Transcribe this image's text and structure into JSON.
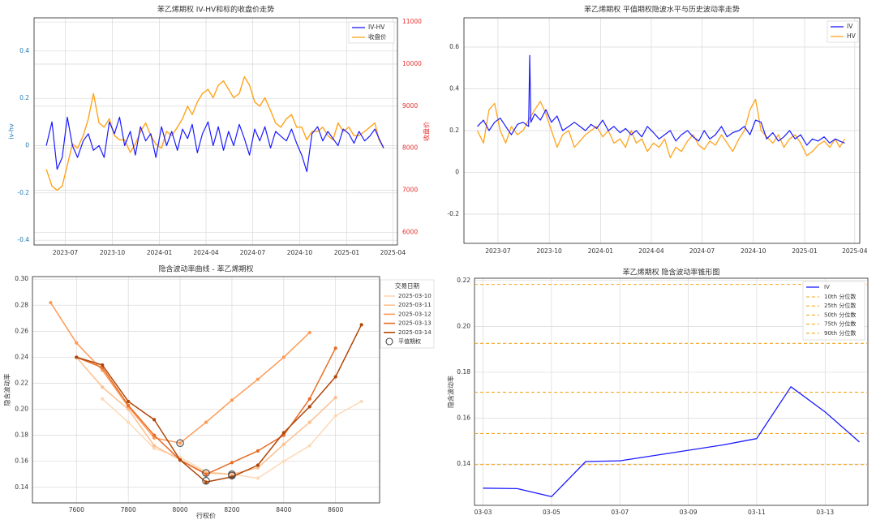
{
  "chart_data": [
    {
      "type": "line",
      "title": "苯乙烯期权 IV-HV和标的收盘价走势",
      "xlabel": "",
      "ylabel": "iv-hv",
      "y2label": "收盘价",
      "xlim": [
        "2023-05-01",
        "2025-04-10"
      ],
      "ylim": [
        -0.42,
        0.54
      ],
      "y2lim": [
        5700,
        11100
      ],
      "x_ticks": [
        "2023-07",
        "2023-10",
        "2024-01",
        "2024-04",
        "2024-07",
        "2024-10",
        "2025-01",
        "2025-04"
      ],
      "y_ticks": [
        -0.4,
        -0.2,
        0.0,
        0.2,
        0.4
      ],
      "y2_ticks": [
        6000,
        7000,
        8000,
        9000,
        10000,
        11000
      ],
      "grid": true,
      "legend": "top-right",
      "colors": {
        "iv_hv": "#1a1aff",
        "close": "#ffa31a",
        "left_axis": "#1f77b4",
        "right_axis": "#e8302f"
      },
      "series": [
        {
          "name": "IV-HV",
          "axis": "left",
          "x": [
            "2023-05-25",
            "2023-06-05",
            "2023-06-15",
            "2023-06-25",
            "2023-07-05",
            "2023-07-15",
            "2023-07-25",
            "2023-08-05",
            "2023-08-15",
            "2023-08-25",
            "2023-09-05",
            "2023-09-15",
            "2023-09-25",
            "2023-10-05",
            "2023-10-15",
            "2023-10-25",
            "2023-11-05",
            "2023-11-15",
            "2023-11-25",
            "2023-12-05",
            "2023-12-15",
            "2023-12-25",
            "2024-01-05",
            "2024-01-15",
            "2024-01-25",
            "2024-02-05",
            "2024-02-15",
            "2024-02-25",
            "2024-03-05",
            "2024-03-15",
            "2024-03-25",
            "2024-04-05",
            "2024-04-15",
            "2024-04-25",
            "2024-05-05",
            "2024-05-15",
            "2024-05-25",
            "2024-06-05",
            "2024-06-15",
            "2024-06-25",
            "2024-07-05",
            "2024-07-15",
            "2024-07-25",
            "2024-08-05",
            "2024-08-15",
            "2024-08-25",
            "2024-09-05",
            "2024-09-15",
            "2024-09-25",
            "2024-10-05",
            "2024-10-15",
            "2024-10-25",
            "2024-11-05",
            "2024-11-15",
            "2024-11-25",
            "2024-12-05",
            "2024-12-15",
            "2024-12-25",
            "2025-01-05",
            "2025-01-15",
            "2025-01-25",
            "2025-02-05",
            "2025-02-15",
            "2025-02-25",
            "2025-03-05",
            "2025-03-14"
          ],
          "values": [
            0.0,
            0.1,
            -0.1,
            -0.05,
            0.12,
            0.0,
            -0.05,
            0.02,
            0.05,
            -0.02,
            0.0,
            -0.05,
            0.1,
            0.05,
            0.12,
            0.0,
            0.06,
            -0.04,
            0.08,
            0.02,
            0.05,
            -0.05,
            0.08,
            0.0,
            0.06,
            -0.02,
            0.07,
            0.03,
            0.09,
            -0.03,
            0.05,
            0.1,
            0.0,
            0.08,
            -0.02,
            0.06,
            0.0,
            0.09,
            0.03,
            -0.04,
            0.07,
            0.02,
            0.08,
            -0.01,
            0.06,
            0.04,
            0.02,
            0.07,
            0.01,
            -0.04,
            -0.11,
            0.05,
            0.08,
            0.02,
            0.06,
            0.03,
            0.0,
            0.07,
            0.05,
            0.01,
            0.06,
            0.02,
            0.04,
            0.07,
            0.03,
            -0.01
          ]
        },
        {
          "name": "收盘价",
          "axis": "right",
          "x": [
            "2023-05-25",
            "2023-06-05",
            "2023-06-15",
            "2023-06-25",
            "2023-07-05",
            "2023-07-15",
            "2023-07-25",
            "2023-08-05",
            "2023-08-15",
            "2023-08-25",
            "2023-09-05",
            "2023-09-15",
            "2023-09-25",
            "2023-10-05",
            "2023-10-15",
            "2023-10-25",
            "2023-11-05",
            "2023-11-15",
            "2023-11-25",
            "2023-12-05",
            "2023-12-15",
            "2023-12-25",
            "2024-01-05",
            "2024-01-15",
            "2024-01-25",
            "2024-02-05",
            "2024-02-15",
            "2024-02-25",
            "2024-03-05",
            "2024-03-15",
            "2024-03-25",
            "2024-04-05",
            "2024-04-15",
            "2024-04-25",
            "2024-05-05",
            "2024-05-15",
            "2024-05-25",
            "2024-06-05",
            "2024-06-15",
            "2024-06-25",
            "2024-07-05",
            "2024-07-15",
            "2024-07-25",
            "2024-08-05",
            "2024-08-15",
            "2024-08-25",
            "2024-09-05",
            "2024-09-15",
            "2024-09-25",
            "2024-10-05",
            "2024-10-15",
            "2024-10-25",
            "2024-11-05",
            "2024-11-15",
            "2024-11-25",
            "2024-12-05",
            "2024-12-15",
            "2024-12-25",
            "2025-01-05",
            "2025-01-15",
            "2025-01-25",
            "2025-02-05",
            "2025-02-15",
            "2025-02-25",
            "2025-03-05",
            "2025-03-14"
          ],
          "values": [
            7500,
            7100,
            7000,
            7100,
            7600,
            8100,
            8000,
            8300,
            8700,
            9300,
            8600,
            8500,
            8700,
            8300,
            8200,
            8200,
            7900,
            8100,
            8400,
            8600,
            8300,
            8100,
            8000,
            8400,
            8300,
            8500,
            8700,
            9000,
            8800,
            9100,
            9300,
            9400,
            9200,
            9500,
            9600,
            9400,
            9200,
            9300,
            9700,
            9500,
            9100,
            9000,
            9200,
            8900,
            8600,
            8500,
            8700,
            8800,
            8500,
            8500,
            8200,
            8400,
            8400,
            8500,
            8300,
            8200,
            8600,
            8400,
            8500,
            8300,
            8300,
            8400,
            8500,
            8600,
            8200,
            8000
          ]
        }
      ]
    },
    {
      "type": "line",
      "title": "苯乙烯期权 平值期权隐波水平与历史波动率走势",
      "xlabel": "",
      "ylabel": "",
      "xlim": [
        "2023-05-01",
        "2025-04-10"
      ],
      "ylim": [
        -0.34,
        0.74
      ],
      "x_ticks": [
        "2023-07",
        "2023-10",
        "2024-01",
        "2024-04",
        "2024-07",
        "2024-10",
        "2025-01",
        "2025-04"
      ],
      "y_ticks": [
        -0.2,
        0.0,
        0.2,
        0.4,
        0.6
      ],
      "grid": true,
      "legend": "top-right",
      "colors": {
        "IV": "#1a1aff",
        "HV": "#ffa31a"
      },
      "series": [
        {
          "name": "IV",
          "x": [
            "2023-05-25",
            "2023-06-05",
            "2023-06-15",
            "2023-06-25",
            "2023-07-05",
            "2023-07-15",
            "2023-07-25",
            "2023-08-05",
            "2023-08-15",
            "2023-08-25",
            "2023-08-27",
            "2023-08-29",
            "2023-09-05",
            "2023-09-15",
            "2023-09-25",
            "2023-10-05",
            "2023-10-15",
            "2023-10-25",
            "2023-11-05",
            "2023-11-15",
            "2023-11-25",
            "2023-12-05",
            "2023-12-15",
            "2023-12-25",
            "2024-01-05",
            "2024-01-15",
            "2024-01-25",
            "2024-02-05",
            "2024-02-15",
            "2024-02-25",
            "2024-03-05",
            "2024-03-15",
            "2024-03-25",
            "2024-04-05",
            "2024-04-15",
            "2024-04-25",
            "2024-05-05",
            "2024-05-15",
            "2024-05-25",
            "2024-06-05",
            "2024-06-15",
            "2024-06-25",
            "2024-07-05",
            "2024-07-15",
            "2024-07-25",
            "2024-08-05",
            "2024-08-15",
            "2024-08-25",
            "2024-09-05",
            "2024-09-15",
            "2024-09-25",
            "2024-10-05",
            "2024-10-15",
            "2024-10-25",
            "2024-11-05",
            "2024-11-15",
            "2024-11-25",
            "2024-12-05",
            "2024-12-15",
            "2024-12-25",
            "2025-01-05",
            "2025-01-15",
            "2025-01-25",
            "2025-02-05",
            "2025-02-15",
            "2025-02-25",
            "2025-03-05",
            "2025-03-14"
          ],
          "values": [
            0.22,
            0.25,
            0.2,
            0.24,
            0.26,
            0.22,
            0.18,
            0.23,
            0.24,
            0.22,
            0.56,
            0.24,
            0.28,
            0.25,
            0.3,
            0.24,
            0.27,
            0.2,
            0.22,
            0.24,
            0.22,
            0.2,
            0.23,
            0.21,
            0.25,
            0.2,
            0.22,
            0.19,
            0.21,
            0.18,
            0.2,
            0.17,
            0.22,
            0.19,
            0.16,
            0.18,
            0.2,
            0.15,
            0.18,
            0.2,
            0.17,
            0.15,
            0.2,
            0.16,
            0.18,
            0.22,
            0.17,
            0.19,
            0.2,
            0.22,
            0.18,
            0.25,
            0.24,
            0.16,
            0.19,
            0.15,
            0.17,
            0.2,
            0.16,
            0.18,
            0.13,
            0.16,
            0.15,
            0.17,
            0.14,
            0.16,
            0.15,
            0.14
          ]
        },
        {
          "name": "HV",
          "x": [
            "2023-05-25",
            "2023-06-05",
            "2023-06-15",
            "2023-06-25",
            "2023-07-05",
            "2023-07-15",
            "2023-07-25",
            "2023-08-05",
            "2023-08-15",
            "2023-08-25",
            "2023-09-05",
            "2023-09-15",
            "2023-09-25",
            "2023-10-05",
            "2023-10-15",
            "2023-10-25",
            "2023-11-05",
            "2023-11-15",
            "2023-11-25",
            "2023-12-05",
            "2023-12-15",
            "2023-12-25",
            "2024-01-05",
            "2024-01-15",
            "2024-01-25",
            "2024-02-05",
            "2024-02-15",
            "2024-02-25",
            "2024-03-05",
            "2024-03-15",
            "2024-03-25",
            "2024-04-05",
            "2024-04-15",
            "2024-04-25",
            "2024-05-05",
            "2024-05-15",
            "2024-05-25",
            "2024-06-05",
            "2024-06-15",
            "2024-06-25",
            "2024-07-05",
            "2024-07-15",
            "2024-07-25",
            "2024-08-05",
            "2024-08-15",
            "2024-08-25",
            "2024-09-05",
            "2024-09-15",
            "2024-09-25",
            "2024-10-05",
            "2024-10-15",
            "2024-10-25",
            "2024-11-05",
            "2024-11-15",
            "2024-11-25",
            "2024-12-05",
            "2024-12-15",
            "2024-12-25",
            "2025-01-05",
            "2025-01-15",
            "2025-01-25",
            "2025-02-05",
            "2025-02-15",
            "2025-02-25",
            "2025-03-05",
            "2025-03-14"
          ],
          "values": [
            0.2,
            0.14,
            0.3,
            0.33,
            0.2,
            0.14,
            0.22,
            0.18,
            0.2,
            0.25,
            0.3,
            0.34,
            0.28,
            0.2,
            0.12,
            0.18,
            0.2,
            0.12,
            0.15,
            0.18,
            0.2,
            0.22,
            0.17,
            0.2,
            0.14,
            0.16,
            0.12,
            0.2,
            0.14,
            0.16,
            0.1,
            0.14,
            0.12,
            0.16,
            0.07,
            0.12,
            0.1,
            0.15,
            0.18,
            0.13,
            0.11,
            0.15,
            0.13,
            0.18,
            0.14,
            0.1,
            0.16,
            0.2,
            0.3,
            0.35,
            0.2,
            0.17,
            0.14,
            0.18,
            0.12,
            0.16,
            0.18,
            0.14,
            0.08,
            0.1,
            0.13,
            0.15,
            0.12,
            0.16,
            0.12,
            0.16
          ]
        }
      ]
    },
    {
      "type": "line",
      "title": "隐含波动率曲线 - 苯乙烯期权",
      "xlabel": "行权价",
      "ylabel": "隐含波动率",
      "xlim": [
        7430,
        8770
      ],
      "ylim": [
        0.128,
        0.302
      ],
      "x_ticks": [
        7600,
        7800,
        8000,
        8200,
        8400,
        8600
      ],
      "y_ticks": [
        0.14,
        0.16,
        0.18,
        0.2,
        0.22,
        0.24,
        0.26,
        0.28,
        0.3
      ],
      "grid": true,
      "legend_title": "交易日期",
      "legend": "top-right",
      "atm_label": "平值期权",
      "series": [
        {
          "name": "2025-03-10",
          "color": "#fdd9b8",
          "x": [
            7700,
            7800,
            7900,
            8000,
            8100,
            8200,
            8300,
            8400,
            8500,
            8600,
            8700
          ],
          "values": [
            0.208,
            0.19,
            0.17,
            0.163,
            0.152,
            0.15,
            0.147,
            0.16,
            0.172,
            0.195,
            0.206
          ]
        },
        {
          "name": "2025-03-11",
          "color": "#fdbf8e",
          "x": [
            7600,
            7700,
            7800,
            7900,
            8000,
            8100,
            8200,
            8300,
            8400,
            8500,
            8600
          ],
          "values": [
            0.24,
            0.217,
            0.2,
            0.172,
            0.161,
            0.151,
            0.15,
            0.155,
            0.173,
            0.19,
            0.209
          ]
        },
        {
          "name": "2025-03-12",
          "color": "#fd9a55",
          "x": [
            7500,
            7600,
            7700,
            7800,
            7900,
            8000,
            8100,
            8200,
            8300,
            8400,
            8500
          ],
          "values": [
            0.282,
            0.251,
            0.23,
            0.202,
            0.178,
            0.174,
            0.19,
            0.207,
            0.223,
            0.24,
            0.259
          ]
        },
        {
          "name": "2025-03-13",
          "color": "#e86c26",
          "x": [
            7600,
            7700,
            7800,
            7900,
            8000,
            8100,
            8200,
            8300,
            8400,
            8500,
            8600
          ],
          "values": [
            0.24,
            0.232,
            0.203,
            0.18,
            0.161,
            0.15,
            0.159,
            0.168,
            0.18,
            0.208,
            0.247
          ]
        },
        {
          "name": "2025-03-14",
          "color": "#b14608",
          "x": [
            7600,
            7700,
            7800,
            7900,
            8000,
            8100,
            8200,
            8300,
            8400,
            8500,
            8600,
            8700
          ],
          "values": [
            0.24,
            0.234,
            0.206,
            0.192,
            0.161,
            0.144,
            0.148,
            0.157,
            0.182,
            0.202,
            0.225,
            0.265
          ]
        }
      ],
      "atm_points": [
        {
          "x": 8000,
          "y": 0.174
        },
        {
          "x": 8100,
          "y": 0.151
        },
        {
          "x": 8100,
          "y": 0.145
        },
        {
          "x": 8200,
          "y": 0.149
        },
        {
          "x": 8200,
          "y": 0.15
        }
      ]
    },
    {
      "type": "line",
      "title": "苯乙烯期权 隐含波动率锥形图",
      "xlabel": "",
      "ylabel": "隐含波动率",
      "xlim": [
        "2025-03-02 18:00",
        "2025-03-14 06:00"
      ],
      "ylim": [
        0.122,
        0.221
      ],
      "x_ticks": [
        "03-03",
        "03-05",
        "03-07",
        "03-09",
        "03-11",
        "03-13"
      ],
      "y_ticks": [
        0.14,
        0.16,
        0.18,
        0.2,
        0.22
      ],
      "grid": true,
      "legend": "top-right",
      "colors": {
        "IV": "#1a1aff",
        "percentiles": "#f5a623"
      },
      "series": [
        {
          "name": "IV",
          "x": [
            "2025-03-03",
            "2025-03-04",
            "2025-03-05",
            "2025-03-06",
            "2025-03-07",
            "2025-03-10",
            "2025-03-11",
            "2025-03-12",
            "2025-03-13",
            "2025-03-14"
          ],
          "values": [
            0.1295,
            0.1293,
            0.1258,
            0.1411,
            0.1414,
            0.1483,
            0.1511,
            0.1737,
            0.1627,
            0.1496
          ]
        }
      ],
      "percentiles": [
        {
          "name": "10th 分位数",
          "value": 0.1398
        },
        {
          "name": "25th 分位数",
          "value": 0.1533
        },
        {
          "name": "50th 分位数",
          "value": 0.1713
        },
        {
          "name": "75th 分位数",
          "value": 0.1926
        },
        {
          "name": "90th 分位数",
          "value": 0.2183
        }
      ]
    }
  ]
}
